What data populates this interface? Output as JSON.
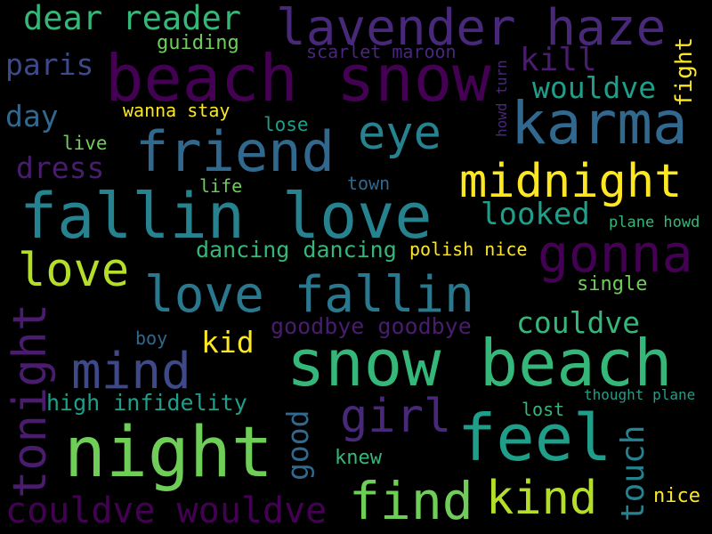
{
  "words": {
    "dear_reader": "dear reader",
    "lavender_haze": "lavender haze",
    "beach_snow": "beach snow",
    "paris": "paris",
    "guiding": "guiding",
    "scarlet_maroon": "scarlet maroon",
    "kill": "kill",
    "fight": "fight",
    "karma": "karma",
    "wouldve_1": "wouldve",
    "howd_turn": "howd turn",
    "day": "day",
    "wanna_stay": "wanna stay",
    "lose": "lose",
    "eye": "eye",
    "friend": "friend",
    "live": "live",
    "dress": "dress",
    "midnight": "midnight",
    "life": "life",
    "town": "town",
    "fallin_love": "fallin love",
    "looked": "looked",
    "plane_howd": "plane howd",
    "gonna": "gonna",
    "love": "love",
    "dancing_dancing": "dancing dancing",
    "polish_nice": "polish nice",
    "love_fallin": "love fallin",
    "single": "single",
    "tonight": "tonight",
    "couldve_1": "couldve",
    "goodbye_goodbye": "goodbye goodbye",
    "boy": "boy",
    "kid": "kid",
    "mind": "mind",
    "snow_beach": "snow beach",
    "high_infidelity": "high infidelity",
    "thought_plane": "thought plane",
    "girl": "girl",
    "lost": "lost",
    "good": "good",
    "feel": "feel",
    "night": "night",
    "touch": "touch",
    "knew": "knew",
    "find": "find",
    "kind": "kind",
    "nice": "nice",
    "couldve_wouldve": "couldve wouldve"
  }
}
